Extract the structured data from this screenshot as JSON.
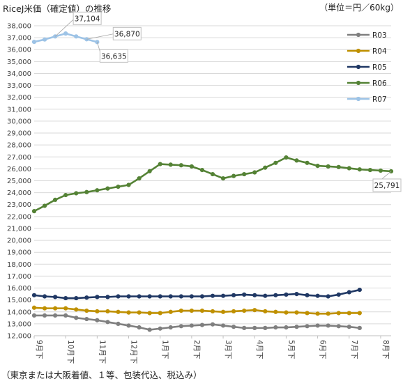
{
  "chart_data": {
    "type": "line",
    "title": "RiceJ米価（確定値）の推移",
    "unit_label": "（単位＝円／60kg）",
    "note": "（東京または大阪着値、１等、包装代込、税込み）",
    "x_ticks": [
      "9月下",
      "10月下",
      "11月下",
      "12月下",
      "1月下",
      "2月下",
      "3月下",
      "4月下",
      "5月下",
      "6月下",
      "7月下",
      "8月下"
    ],
    "ylim": [
      12000,
      38000
    ],
    "y_ticks": [
      "12,000",
      "13,000",
      "14,000",
      "15,000",
      "16,000",
      "17,000",
      "18,000",
      "19,000",
      "20,000",
      "21,000",
      "22,000",
      "23,000",
      "24,000",
      "25,000",
      "26,000",
      "27,000",
      "28,000",
      "29,000",
      "30,000",
      "31,000",
      "32,000",
      "33,000",
      "34,000",
      "35,000",
      "36,000",
      "37,000",
      "38,000"
    ],
    "grid": true,
    "legend_position": "top-right",
    "series": [
      {
        "name": "R03",
        "color": "#7f7f7f",
        "values": [
          13700,
          13700,
          13700,
          13700,
          13500,
          13400,
          13300,
          13150,
          13000,
          12850,
          12700,
          12500,
          12600,
          12700,
          12800,
          12850,
          12900,
          12950,
          12850,
          12750,
          12650,
          12650,
          12650,
          12700,
          12700,
          12750,
          12800,
          12850,
          12850,
          12800,
          12750,
          12650
        ]
      },
      {
        "name": "R04",
        "color": "#bf9000",
        "values": [
          14350,
          14300,
          14300,
          14300,
          14200,
          14100,
          14050,
          14050,
          14000,
          13950,
          13950,
          13900,
          13900,
          14000,
          14100,
          14100,
          14100,
          14050,
          14000,
          14050,
          14100,
          14150,
          14050,
          14000,
          13950,
          13950,
          13900,
          13850,
          13850,
          13900,
          13900,
          13900
        ]
      },
      {
        "name": "R05",
        "color": "#203864",
        "values": [
          15400,
          15300,
          15250,
          15150,
          15150,
          15200,
          15250,
          15250,
          15300,
          15300,
          15300,
          15300,
          15300,
          15300,
          15300,
          15300,
          15300,
          15350,
          15350,
          15400,
          15450,
          15400,
          15350,
          15400,
          15450,
          15500,
          15400,
          15350,
          15300,
          15450,
          15650,
          15850
        ]
      },
      {
        "name": "R06",
        "color": "#548235",
        "values": [
          22450,
          22900,
          23400,
          23800,
          23950,
          24050,
          24200,
          24350,
          24500,
          24650,
          25200,
          25800,
          26400,
          26350,
          26300,
          26200,
          25900,
          25550,
          25200,
          25400,
          25550,
          25700,
          26100,
          26500,
          26950,
          26700,
          26500,
          26250,
          26200,
          26150,
          26050,
          25950,
          25900,
          25850,
          25791
        ]
      },
      {
        "name": "R07",
        "color": "#9dc3e6",
        "values": [
          36650,
          36850,
          37104,
          37350,
          37104,
          36870,
          36635
        ]
      }
    ],
    "data_labels": [
      {
        "series": "R07",
        "index": 2,
        "text": "37,104"
      },
      {
        "series": "R07",
        "index": 5,
        "text": "36,870"
      },
      {
        "series": "R07",
        "index": 6,
        "text": "36,635"
      },
      {
        "series": "R06",
        "index": 34,
        "text": "25,791"
      }
    ]
  }
}
